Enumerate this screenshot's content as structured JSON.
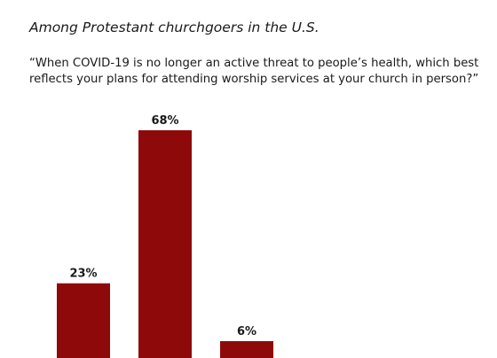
{
  "header": {
    "subtitle": "Among Protestant churchgoers in the U.S.",
    "question": "“When COVID-19 is no longer an active threat to people’s health, which best reflects your plans for attending worship services at your church in person?”"
  },
  "colors": {
    "bar": "#8e0a0a"
  },
  "chart_data": {
    "type": "bar",
    "categories": [
      "",
      "",
      ""
    ],
    "values": [
      23,
      68,
      6
    ],
    "data_labels": [
      "23%",
      "68%",
      "6%"
    ],
    "title": "",
    "xlabel": "",
    "ylabel": "",
    "ylim": [
      0,
      68
    ],
    "grid": false,
    "legend": "none"
  }
}
